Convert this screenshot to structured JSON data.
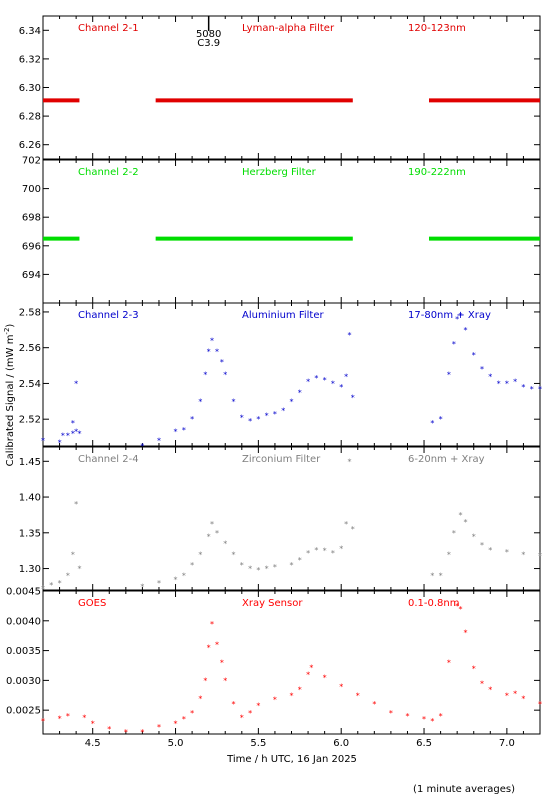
{
  "xlabel": "Time / h UTC, 16 Jan 2025",
  "ylabel": "Calibrated Signal / (mW m",
  "ylabel_sup": "-2",
  "ylabel_close": ")",
  "footnote": "(1 minute averages)",
  "marker": {
    "top": "5080",
    "bottom": "C3.9",
    "x": 5.2
  },
  "xticks": [
    "4.5",
    "5.0",
    "5.5",
    "6.0",
    "6.5",
    "7.0"
  ],
  "chart_data": [
    {
      "type": "scatter",
      "name": "Channel 2-1",
      "filter": "Lyman-alpha Filter",
      "band": "120-123nm",
      "color": "#e00000",
      "xlim": [
        4.2,
        7.2
      ],
      "ylim": [
        6.25,
        6.35
      ],
      "yticks": [
        "6.26",
        "6.28",
        "6.30",
        "6.32",
        "6.34"
      ],
      "segments": [
        {
          "x0": 4.2,
          "x1": 4.42,
          "y": 6.291
        },
        {
          "x0": 4.88,
          "x1": 6.07,
          "y": 6.291
        },
        {
          "x0": 6.53,
          "x1": 7.2,
          "y": 6.291
        }
      ]
    },
    {
      "type": "scatter",
      "name": "Channel 2-2",
      "filter": "Herzberg Filter",
      "band": "190-222nm",
      "color": "#00dd00",
      "xlim": [
        4.2,
        7.2
      ],
      "ylim": [
        692,
        702
      ],
      "yticks": [
        "694",
        "696",
        "698",
        "700",
        "702"
      ],
      "segments": [
        {
          "x0": 4.2,
          "x1": 4.42,
          "y": 696.5
        },
        {
          "x0": 4.88,
          "x1": 6.07,
          "y": 696.5
        },
        {
          "x0": 6.53,
          "x1": 7.2,
          "y": 696.5
        }
      ]
    },
    {
      "type": "scatter",
      "name": "Channel 2-3",
      "filter": "Aluminium Filter",
      "band": "17-80nm + Xray",
      "color": "#0000cc",
      "xlim": [
        4.2,
        7.2
      ],
      "ylim": [
        2.505,
        2.585
      ],
      "yticks": [
        "2.52",
        "2.54",
        "2.56",
        "2.58"
      ],
      "points": [
        [
          4.2,
          2.508
        ],
        [
          4.3,
          2.507
        ],
        [
          4.32,
          2.511
        ],
        [
          4.35,
          2.511
        ],
        [
          4.38,
          2.512
        ],
        [
          4.4,
          2.513
        ],
        [
          4.38,
          2.518
        ],
        [
          4.4,
          2.54
        ],
        [
          4.42,
          2.512
        ],
        [
          4.8,
          2.505
        ],
        [
          4.9,
          2.508
        ],
        [
          5.0,
          2.513
        ],
        [
          5.05,
          2.514
        ],
        [
          5.1,
          2.52
        ],
        [
          5.15,
          2.53
        ],
        [
          5.18,
          2.545
        ],
        [
          5.2,
          2.558
        ],
        [
          5.22,
          2.564
        ],
        [
          5.25,
          2.558
        ],
        [
          5.28,
          2.552
        ],
        [
          5.3,
          2.545
        ],
        [
          5.35,
          2.53
        ],
        [
          5.4,
          2.521
        ],
        [
          5.45,
          2.519
        ],
        [
          5.5,
          2.52
        ],
        [
          5.55,
          2.522
        ],
        [
          5.6,
          2.523
        ],
        [
          5.65,
          2.525
        ],
        [
          5.7,
          2.53
        ],
        [
          5.75,
          2.535
        ],
        [
          5.8,
          2.541
        ],
        [
          5.85,
          2.543
        ],
        [
          5.9,
          2.542
        ],
        [
          5.95,
          2.54
        ],
        [
          6.0,
          2.538
        ],
        [
          6.03,
          2.544
        ],
        [
          6.05,
          2.567
        ],
        [
          6.07,
          2.532
        ],
        [
          6.55,
          2.518
        ],
        [
          6.6,
          2.52
        ],
        [
          6.65,
          2.545
        ],
        [
          6.68,
          2.562
        ],
        [
          6.7,
          2.576
        ],
        [
          6.72,
          2.578
        ],
        [
          6.75,
          2.57
        ],
        [
          6.8,
          2.556
        ],
        [
          6.85,
          2.548
        ],
        [
          6.9,
          2.544
        ],
        [
          6.95,
          2.54
        ],
        [
          7.0,
          2.54
        ],
        [
          7.05,
          2.541
        ],
        [
          7.1,
          2.538
        ],
        [
          7.15,
          2.537
        ],
        [
          7.2,
          2.537
        ]
      ]
    },
    {
      "type": "scatter",
      "name": "Channel 2-4",
      "filter": "Zirconium Filter",
      "band": "6-20nm + Xray",
      "color": "#808080",
      "xlim": [
        4.2,
        7.2
      ],
      "ylim": [
        1.27,
        1.47
      ],
      "yticks": [
        "1.30",
        "1.35",
        "1.40",
        "1.45"
      ],
      "points": [
        [
          4.2,
          1.272
        ],
        [
          4.25,
          1.277
        ],
        [
          4.3,
          1.28
        ],
        [
          4.35,
          1.29
        ],
        [
          4.38,
          1.32
        ],
        [
          4.4,
          1.39
        ],
        [
          4.42,
          1.3
        ],
        [
          4.8,
          1.275
        ],
        [
          4.9,
          1.28
        ],
        [
          5.0,
          1.285
        ],
        [
          5.05,
          1.29
        ],
        [
          5.1,
          1.305
        ],
        [
          5.15,
          1.32
        ],
        [
          5.2,
          1.345
        ],
        [
          5.22,
          1.362
        ],
        [
          5.25,
          1.35
        ],
        [
          5.3,
          1.335
        ],
        [
          5.35,
          1.32
        ],
        [
          5.4,
          1.305
        ],
        [
          5.45,
          1.3
        ],
        [
          5.5,
          1.298
        ],
        [
          5.55,
          1.3
        ],
        [
          5.6,
          1.302
        ],
        [
          5.7,
          1.305
        ],
        [
          5.75,
          1.312
        ],
        [
          5.8,
          1.322
        ],
        [
          5.85,
          1.326
        ],
        [
          5.9,
          1.325
        ],
        [
          5.95,
          1.322
        ],
        [
          6.0,
          1.328
        ],
        [
          6.03,
          1.362
        ],
        [
          6.05,
          1.45
        ],
        [
          6.07,
          1.355
        ],
        [
          6.55,
          1.29
        ],
        [
          6.6,
          1.29
        ],
        [
          6.65,
          1.32
        ],
        [
          6.68,
          1.35
        ],
        [
          6.72,
          1.375
        ],
        [
          6.75,
          1.365
        ],
        [
          6.8,
          1.345
        ],
        [
          6.85,
          1.333
        ],
        [
          6.9,
          1.326
        ],
        [
          7.0,
          1.323
        ],
        [
          7.1,
          1.32
        ],
        [
          7.2,
          1.318
        ]
      ]
    },
    {
      "type": "scatter",
      "name": "GOES",
      "filter": "Xray Sensor",
      "band": "0.1-0.8nm",
      "color": "#ff0000",
      "xlim": [
        4.2,
        7.2
      ],
      "ylim": [
        0.0021,
        0.0045
      ],
      "yticks": [
        "0.0025",
        "0.0030",
        "0.0035",
        "0.0040",
        "0.0045"
      ],
      "points": [
        [
          4.2,
          0.00232
        ],
        [
          4.3,
          0.00236
        ],
        [
          4.35,
          0.0024
        ],
        [
          4.45,
          0.00238
        ],
        [
          4.5,
          0.00228
        ],
        [
          4.6,
          0.00218
        ],
        [
          4.7,
          0.00213
        ],
        [
          4.8,
          0.00213
        ],
        [
          4.9,
          0.00222
        ],
        [
          5.0,
          0.00228
        ],
        [
          5.05,
          0.00235
        ],
        [
          5.1,
          0.00245
        ],
        [
          5.15,
          0.0027
        ],
        [
          5.18,
          0.003
        ],
        [
          5.2,
          0.00355
        ],
        [
          5.22,
          0.00395
        ],
        [
          5.25,
          0.0036
        ],
        [
          5.28,
          0.0033
        ],
        [
          5.3,
          0.003
        ],
        [
          5.35,
          0.0026
        ],
        [
          5.4,
          0.00238
        ],
        [
          5.45,
          0.00245
        ],
        [
          5.5,
          0.00258
        ],
        [
          5.6,
          0.00268
        ],
        [
          5.7,
          0.00275
        ],
        [
          5.75,
          0.00285
        ],
        [
          5.8,
          0.0031
        ],
        [
          5.82,
          0.00322
        ],
        [
          5.9,
          0.00305
        ],
        [
          6.0,
          0.0029
        ],
        [
          6.1,
          0.00275
        ],
        [
          6.2,
          0.0026
        ],
        [
          6.3,
          0.00245
        ],
        [
          6.4,
          0.0024
        ],
        [
          6.5,
          0.00235
        ],
        [
          6.55,
          0.00232
        ],
        [
          6.6,
          0.0024
        ],
        [
          6.65,
          0.0033
        ],
        [
          6.7,
          0.00425
        ],
        [
          6.72,
          0.0042
        ],
        [
          6.75,
          0.0038
        ],
        [
          6.8,
          0.0032
        ],
        [
          6.85,
          0.00295
        ],
        [
          6.9,
          0.00285
        ],
        [
          7.0,
          0.00275
        ],
        [
          7.05,
          0.00278
        ],
        [
          7.1,
          0.0027
        ],
        [
          7.2,
          0.0026
        ]
      ]
    }
  ]
}
